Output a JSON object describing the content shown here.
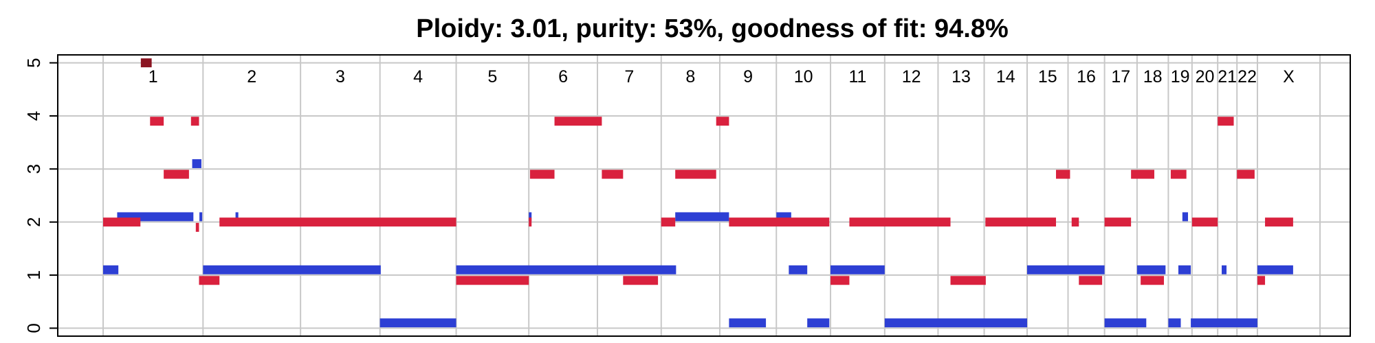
{
  "chart_data": {
    "type": "segment",
    "title": "Ploidy: 3.01, purity: 53%, goodness of fit: 94.8%",
    "xlabel": "",
    "ylabel": "",
    "ylim": [
      -0.15,
      5.15
    ],
    "yticks": [
      "0",
      "1",
      "2",
      "3",
      "4",
      "5"
    ],
    "grid": true,
    "colors": {
      "major": "#d9213e",
      "minor": "#2d3fd4",
      "overflow": "#8b1522",
      "grid": "#c8c8c8",
      "axis": "#000000"
    },
    "chromosomes": [
      {
        "label": "1",
        "start": 0,
        "end": 249
      },
      {
        "label": "2",
        "start": 249,
        "end": 492
      },
      {
        "label": "3",
        "start": 492,
        "end": 690
      },
      {
        "label": "4",
        "start": 690,
        "end": 880
      },
      {
        "label": "5",
        "start": 880,
        "end": 1061
      },
      {
        "label": "6",
        "start": 1061,
        "end": 1232
      },
      {
        "label": "7",
        "start": 1232,
        "end": 1391
      },
      {
        "label": "8",
        "start": 1391,
        "end": 1537
      },
      {
        "label": "9",
        "start": 1537,
        "end": 1678
      },
      {
        "label": "10",
        "start": 1678,
        "end": 1813
      },
      {
        "label": "11",
        "start": 1813,
        "end": 1948
      },
      {
        "label": "12",
        "start": 1948,
        "end": 2081
      },
      {
        "label": "13",
        "start": 2081,
        "end": 2196
      },
      {
        "label": "14",
        "start": 2196,
        "end": 2303
      },
      {
        "label": "15",
        "start": 2303,
        "end": 2405
      },
      {
        "label": "16",
        "start": 2405,
        "end": 2496
      },
      {
        "label": "17",
        "start": 2496,
        "end": 2577
      },
      {
        "label": "18",
        "start": 2577,
        "end": 2655
      },
      {
        "label": "19",
        "start": 2655,
        "end": 2714
      },
      {
        "label": "20",
        "start": 2714,
        "end": 2778
      },
      {
        "label": "21",
        "start": 2778,
        "end": 2826
      },
      {
        "label": "22",
        "start": 2826,
        "end": 2877
      },
      {
        "label": "X",
        "start": 2877,
        "end": 3033
      }
    ],
    "x_range": [
      0,
      3033
    ],
    "overflow_segments": [
      {
        "start": 94,
        "end": 121,
        "cn": 5
      }
    ],
    "major_segments": [
      {
        "start": 0,
        "end": 93,
        "cn": 2
      },
      {
        "start": 117,
        "end": 151,
        "cn": 3.9
      },
      {
        "start": 151,
        "end": 214,
        "cn": 2.9
      },
      {
        "start": 219,
        "end": 239,
        "cn": 3.9
      },
      {
        "start": 231,
        "end": 239,
        "cn": 1.9
      },
      {
        "start": 239,
        "end": 290,
        "cn": 0.9
      },
      {
        "start": 290,
        "end": 880,
        "cn": 2
      },
      {
        "start": 880,
        "end": 1061,
        "cn": 0.9
      },
      {
        "start": 1061,
        "end": 1064,
        "cn": 2
      },
      {
        "start": 1064,
        "end": 1125,
        "cn": 2.9
      },
      {
        "start": 1125,
        "end": 1243,
        "cn": 3.9
      },
      {
        "start": 1243,
        "end": 1296,
        "cn": 2.9
      },
      {
        "start": 1296,
        "end": 1383,
        "cn": 0.9
      },
      {
        "start": 1391,
        "end": 1426,
        "cn": 2
      },
      {
        "start": 1426,
        "end": 1528,
        "cn": 2.9
      },
      {
        "start": 1528,
        "end": 1560,
        "cn": 3.9
      },
      {
        "start": 1560,
        "end": 1810,
        "cn": 2
      },
      {
        "start": 1813,
        "end": 1860,
        "cn": 0.9
      },
      {
        "start": 1860,
        "end": 2112,
        "cn": 2
      },
      {
        "start": 2112,
        "end": 2200,
        "cn": 0.9
      },
      {
        "start": 2199,
        "end": 2375,
        "cn": 2
      },
      {
        "start": 2375,
        "end": 2410,
        "cn": 2.9
      },
      {
        "start": 2414,
        "end": 2432,
        "cn": 2
      },
      {
        "start": 2432,
        "end": 2490,
        "cn": 0.9
      },
      {
        "start": 2496,
        "end": 2562,
        "cn": 2
      },
      {
        "start": 2562,
        "end": 2620,
        "cn": 2.9
      },
      {
        "start": 2586,
        "end": 2644,
        "cn": 0.9
      },
      {
        "start": 2661,
        "end": 2700,
        "cn": 2.9
      },
      {
        "start": 2714,
        "end": 2778,
        "cn": 2
      },
      {
        "start": 2778,
        "end": 2818,
        "cn": 3.9
      },
      {
        "start": 2826,
        "end": 2870,
        "cn": 2.9
      },
      {
        "start": 2877,
        "end": 2896,
        "cn": 0.9
      },
      {
        "start": 2896,
        "end": 2966,
        "cn": 2
      }
    ],
    "minor_segments": [
      {
        "start": 0,
        "end": 38,
        "cn": 1.1
      },
      {
        "start": 35,
        "end": 225,
        "cn": 2.1
      },
      {
        "start": 222,
        "end": 245,
        "cn": 3.1
      },
      {
        "start": 240,
        "end": 247,
        "cn": 2.1
      },
      {
        "start": 249,
        "end": 692,
        "cn": 1.1
      },
      {
        "start": 330,
        "end": 337,
        "cn": 2.1
      },
      {
        "start": 690,
        "end": 880,
        "cn": 0.1
      },
      {
        "start": 880,
        "end": 1428,
        "cn": 1.1
      },
      {
        "start": 1061,
        "end": 1066,
        "cn": 2.1
      },
      {
        "start": 1426,
        "end": 1560,
        "cn": 2.1
      },
      {
        "start": 1560,
        "end": 1652,
        "cn": 0.1
      },
      {
        "start": 1678,
        "end": 1715,
        "cn": 2.1
      },
      {
        "start": 1709,
        "end": 1755,
        "cn": 1.1
      },
      {
        "start": 1755,
        "end": 1810,
        "cn": 0.1
      },
      {
        "start": 1813,
        "end": 1948,
        "cn": 1.1
      },
      {
        "start": 1948,
        "end": 2303,
        "cn": 0.1
      },
      {
        "start": 2303,
        "end": 2496,
        "cn": 1.1
      },
      {
        "start": 2496,
        "end": 2600,
        "cn": 0.1
      },
      {
        "start": 2577,
        "end": 2648,
        "cn": 1.1
      },
      {
        "start": 2655,
        "end": 2686,
        "cn": 0.1
      },
      {
        "start": 2680,
        "end": 2711,
        "cn": 1.1
      },
      {
        "start": 2690,
        "end": 2704,
        "cn": 2.1
      },
      {
        "start": 2711,
        "end": 2877,
        "cn": 0.1
      },
      {
        "start": 2788,
        "end": 2800,
        "cn": 1.1
      },
      {
        "start": 2877,
        "end": 2966,
        "cn": 1.1
      }
    ]
  }
}
